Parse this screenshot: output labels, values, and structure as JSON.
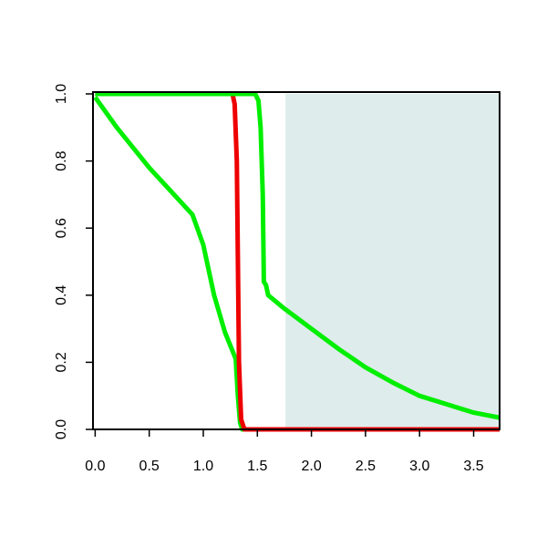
{
  "chart_data": {
    "type": "line",
    "xlim": [
      -0.02,
      3.74
    ],
    "ylim": [
      0,
      1
    ],
    "xticks": [
      {
        "value": 0,
        "label": "0.0"
      },
      {
        "value": 0.5,
        "label": "0.5"
      },
      {
        "value": 1,
        "label": "1.0"
      },
      {
        "value": 1.5,
        "label": "1.5"
      },
      {
        "value": 2,
        "label": "2.0"
      },
      {
        "value": 2.5,
        "label": "2.5"
      },
      {
        "value": 3,
        "label": "3.0"
      },
      {
        "value": 3.5,
        "label": "3.5"
      }
    ],
    "yticks": [
      {
        "value": 0,
        "label": "0.0"
      },
      {
        "value": 0.2,
        "label": "0.2"
      },
      {
        "value": 0.4,
        "label": "0.4"
      },
      {
        "value": 0.6,
        "label": "0.6"
      },
      {
        "value": 0.8,
        "label": "0.8"
      },
      {
        "value": 1,
        "label": "1.0"
      }
    ],
    "shade_from": 1.76,
    "shade_color": "#deeceb",
    "series": [
      {
        "color": "#00ee00",
        "x": [
          0,
          0.2,
          0.5,
          0.7,
          0.9,
          1.0,
          1.1,
          1.2,
          1.3,
          1.32,
          1.34,
          1.36,
          3.74
        ],
        "values": [
          0.99,
          0.9,
          0.78,
          0.71,
          0.64,
          0.55,
          0.4,
          0.29,
          0.21,
          0.1,
          0.02,
          0,
          0
        ]
      },
      {
        "color": "#ee0000",
        "x": [
          0,
          1.27,
          1.29,
          1.31,
          1.32,
          1.33,
          1.35,
          1.38,
          3.74
        ],
        "values": [
          1,
          1,
          0.97,
          0.8,
          0.5,
          0.2,
          0.03,
          0,
          0
        ]
      },
      {
        "color": "#00ee00",
        "x": [
          0,
          1.48,
          1.51,
          1.53,
          1.55,
          1.56,
          1.58,
          1.6,
          1.75,
          2.0,
          2.25,
          2.5,
          2.75,
          3.0,
          3.25,
          3.5,
          3.74
        ],
        "values": [
          1,
          1,
          0.98,
          0.9,
          0.7,
          0.44,
          0.43,
          0.4,
          0.36,
          0.3,
          0.24,
          0.185,
          0.14,
          0.1,
          0.075,
          0.05,
          0.035
        ]
      }
    ]
  }
}
